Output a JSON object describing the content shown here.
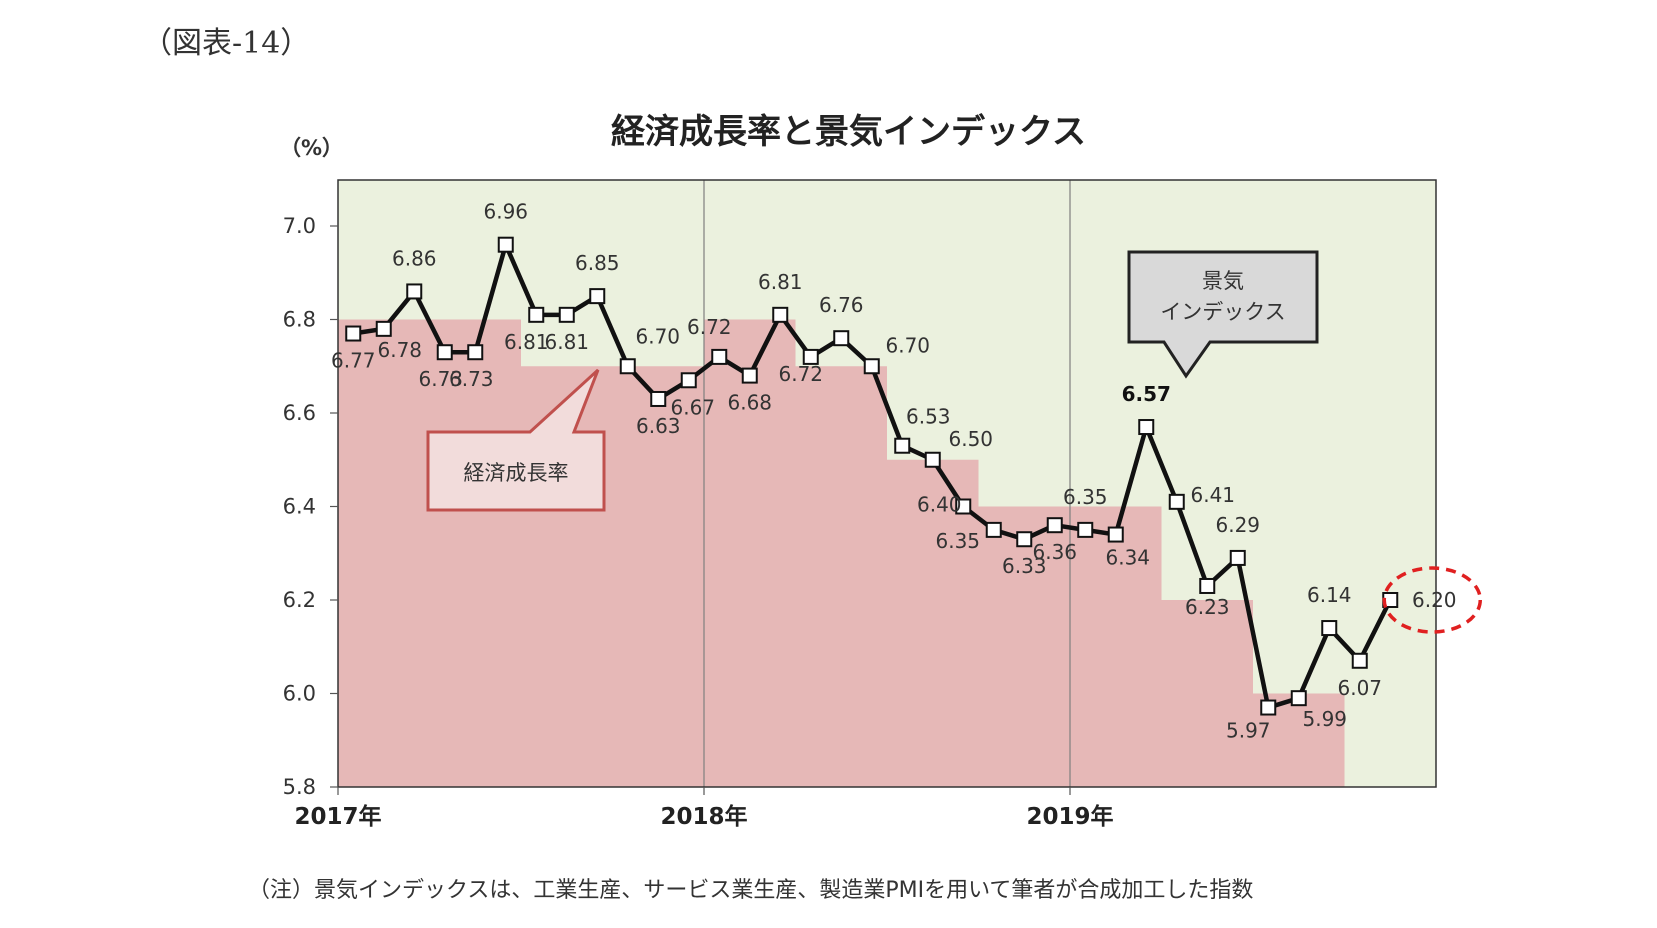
{
  "figure_label": "（図表-14）",
  "note": "（注）景気インデックスは、工業生産、サービス業生産、製造業PMIを用いて筆者が合成加工した指数",
  "chart_data": {
    "type": "line",
    "title": "経済成長率と景気インデックス",
    "unit_label": "（%）",
    "ylim": [
      5.8,
      7.0
    ],
    "yticks": [
      "7.0",
      "6.8",
      "6.6",
      "6.4",
      "6.2",
      "6.0",
      "5.8"
    ],
    "ytick_values": [
      7.0,
      6.8,
      6.6,
      6.4,
      6.2,
      6.0,
      5.8
    ],
    "x_year_labels": [
      "2017年",
      "2018年",
      "2019年"
    ],
    "year_start_index": [
      0,
      12,
      24
    ],
    "n_months": 36,
    "grid": false,
    "series": [
      {
        "name": "景気インデックス",
        "kind": "line",
        "color": "#111111",
        "values": [
          6.77,
          6.78,
          6.86,
          6.73,
          6.73,
          6.96,
          6.81,
          6.81,
          6.85,
          6.7,
          6.63,
          6.67,
          6.72,
          6.68,
          6.81,
          6.72,
          6.76,
          6.7,
          6.53,
          6.5,
          6.4,
          6.35,
          6.33,
          6.36,
          6.35,
          6.34,
          6.57,
          6.41,
          6.23,
          6.29,
          5.97,
          5.99,
          6.14,
          6.07,
          6.2
        ],
        "labels": [
          "6.77",
          "6.78",
          "6.86",
          "6.73",
          "6.73",
          "6.96",
          "6.81",
          "6.81",
          "6.85",
          "6.70",
          "6.63",
          "6.67",
          "6.72",
          "6.68",
          "6.81",
          "6.72",
          "6.76",
          "6.70",
          "6.53",
          "6.50",
          "6.40",
          "6.35",
          "6.33",
          "6.36",
          "6.35",
          "6.34",
          "6.57",
          "6.41",
          "6.23",
          "6.29",
          "5.97",
          "5.99",
          "6.14",
          "6.07",
          "6.20"
        ],
        "highlight_label_index": 26,
        "circled_label_index": 34
      },
      {
        "name": "経済成長率",
        "kind": "step-area",
        "color": "#e6b8b7",
        "quarters": [
          "2017Q1",
          "2017Q2",
          "2017Q3",
          "2017Q4",
          "2018Q1",
          "2018Q2",
          "2018Q3",
          "2018Q4",
          "2019Q1",
          "2019Q2",
          "2019Q3"
        ],
        "values": [
          6.8,
          6.8,
          6.7,
          6.7,
          6.8,
          6.7,
          6.5,
          6.4,
          6.4,
          6.2,
          6.0
        ]
      }
    ],
    "callouts": [
      {
        "text_lines": [
          "景気",
          "インデックス"
        ],
        "target": "景気インデックス"
      },
      {
        "text_lines": [
          "経済成長率"
        ],
        "target": "経済成長率"
      }
    ],
    "colors": {
      "plot_background": "#ebf1de",
      "area_fill": "#e6b8b7",
      "callout_gray": "#d9d9d9",
      "callout_pink_fill": "#f2dcdb",
      "callout_pink_border": "#c0504d",
      "circle": "#e02020"
    }
  }
}
